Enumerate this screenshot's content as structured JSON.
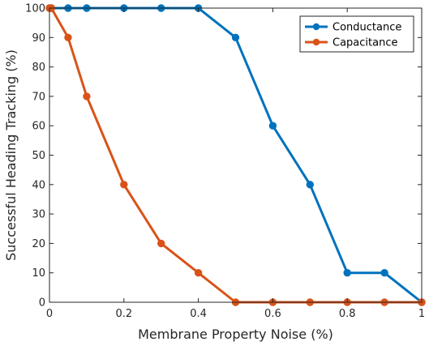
{
  "chart_data": {
    "type": "line",
    "title": "",
    "xlabel": "Membrane Property Noise (%)",
    "ylabel": "Successful Heading Tracking (%)",
    "xlim": [
      0,
      1
    ],
    "ylim": [
      0,
      100
    ],
    "xticks": [
      0,
      0.2,
      0.4,
      0.6,
      0.8,
      1
    ],
    "xtick_labels": [
      "0",
      "0.2",
      "0.4",
      "0.6",
      "0.8",
      "1"
    ],
    "yticks": [
      0,
      10,
      20,
      30,
      40,
      50,
      60,
      70,
      80,
      90,
      100
    ],
    "ytick_labels": [
      "0",
      "10",
      "20",
      "30",
      "40",
      "50",
      "60",
      "70",
      "80",
      "90",
      "100"
    ],
    "grid": false,
    "legend_position": "top-right",
    "series": [
      {
        "name": "Conductance",
        "color": "#0072BD",
        "x": [
          0,
          0.005,
          0.05,
          0.1,
          0.2,
          0.3,
          0.4,
          0.5,
          0.6,
          0.7,
          0.8,
          0.9,
          1
        ],
        "y": [
          100,
          100,
          100,
          100,
          100,
          100,
          100,
          90,
          60,
          40,
          10,
          10,
          0
        ]
      },
      {
        "name": "Capacitance",
        "color": "#D95319",
        "x": [
          0,
          0.005,
          0.05,
          0.1,
          0.2,
          0.3,
          0.4,
          0.5,
          0.6,
          0.7,
          0.8,
          0.9,
          1
        ],
        "y": [
          100,
          100,
          90,
          70,
          40,
          20,
          10,
          0,
          0,
          0,
          0,
          0,
          0
        ]
      }
    ]
  }
}
